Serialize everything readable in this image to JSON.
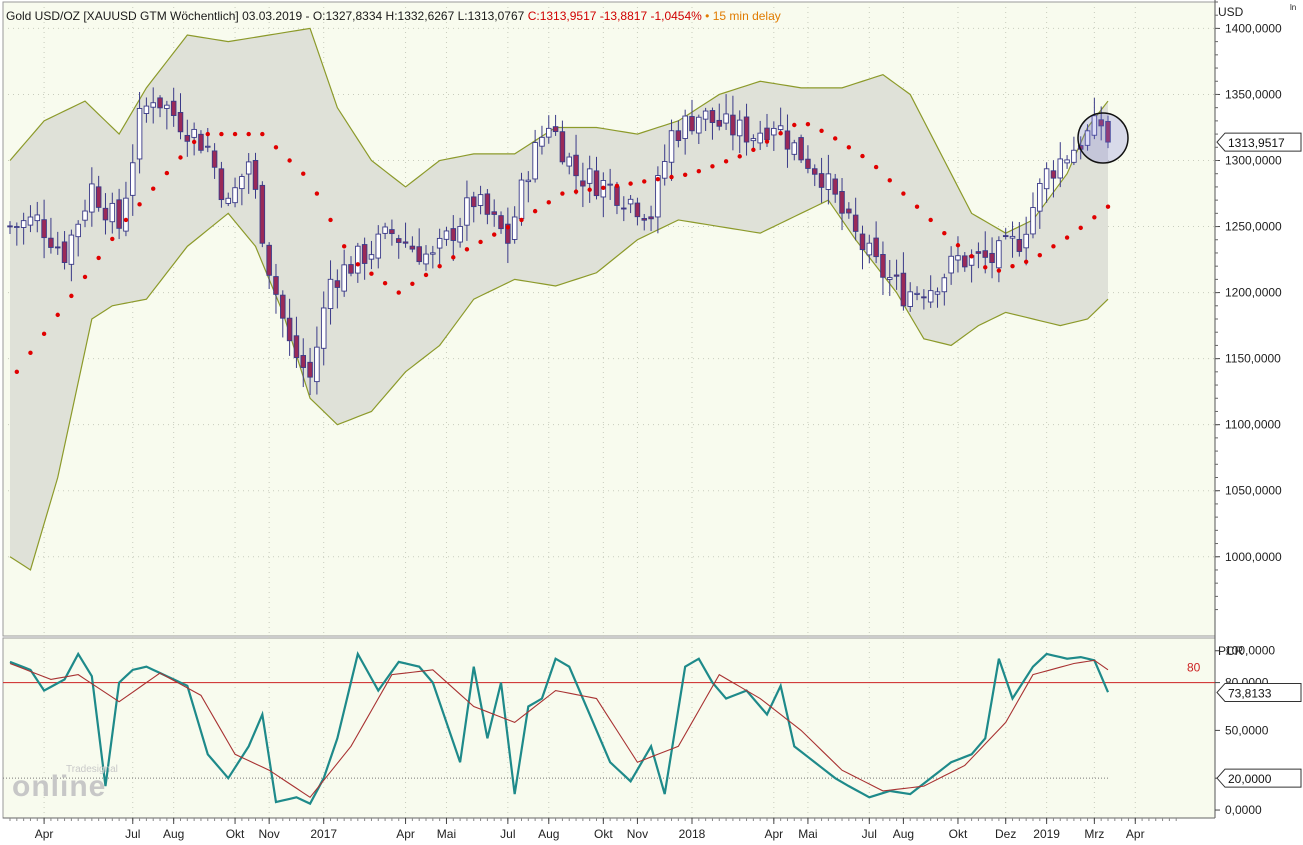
{
  "header": {
    "instrument": "Gold USD/OZ [XAUUSD GTM Wöchentlich]",
    "date": "03.03.2019",
    "ohl": "O:1327,8334 H:1332,6267 L:1313,0767",
    "close": "C:1313,9517 -13,8817 -1,0454%",
    "delay": "15 min delay"
  },
  "watermark": {
    "brand": "Tradesignal",
    "product": "online"
  },
  "colors": {
    "plot_bg": "#f8fbee",
    "band_fill": "#dfe1d8",
    "band_line": "#8c9a2a",
    "candle": "#3a3a88",
    "sar": "#e00000",
    "pcr": "#1e8a8a",
    "pcr_signal": "#a83232",
    "level80": "#cc2222"
  },
  "chart_data": [
    {
      "type": "candlestick",
      "title": "",
      "unit": "USD",
      "corner_label": "ln",
      "ylim": [
        940,
        1420
      ],
      "yticks": [
        "1400,0000",
        "1350,0000",
        "1300,0000",
        "1250,0000",
        "1200,0000",
        "1150,0000",
        "1100,0000",
        "1050,0000",
        "1000,0000"
      ],
      "ytick_values": [
        1400,
        1350,
        1300,
        1250,
        1200,
        1150,
        1100,
        1050,
        1000
      ],
      "last_value_label": "1313,9517",
      "last_value": 1313.95,
      "x_labels": [
        "Apr",
        "Jul",
        "Aug",
        "Okt",
        "Nov",
        "2017",
        "Apr",
        "Mai",
        "Jul",
        "Aug",
        "Okt",
        "Nov",
        "2018",
        "Apr",
        "Mai",
        "Jul",
        "Aug",
        "Okt",
        "Dez",
        "2019",
        "Mrz",
        "Apr"
      ],
      "x_label_weeks": [
        5,
        18,
        24,
        33,
        38,
        46,
        58,
        64,
        73,
        79,
        87,
        92,
        100,
        112,
        117,
        126,
        131,
        139,
        146,
        152,
        159,
        165
      ],
      "total_weeks": 172,
      "close_anchors": [
        [
          0,
          1250
        ],
        [
          4,
          1255
        ],
        [
          8,
          1230
        ],
        [
          12,
          1280
        ],
        [
          16,
          1250
        ],
        [
          19,
          1330
        ],
        [
          21,
          1350
        ],
        [
          25,
          1330
        ],
        [
          29,
          1310
        ],
        [
          32,
          1265
        ],
        [
          35,
          1300
        ],
        [
          38,
          1220
        ],
        [
          41,
          1160
        ],
        [
          44,
          1135
        ],
        [
          47,
          1210
        ],
        [
          51,
          1225
        ],
        [
          56,
          1245
        ],
        [
          62,
          1225
        ],
        [
          68,
          1270
        ],
        [
          73,
          1240
        ],
        [
          76,
          1295
        ],
        [
          79,
          1330
        ],
        [
          83,
          1290
        ],
        [
          88,
          1280
        ],
        [
          94,
          1260
        ],
        [
          97,
          1320
        ],
        [
          101,
          1335
        ],
        [
          105,
          1325
        ],
        [
          109,
          1320
        ],
        [
          112,
          1330
        ],
        [
          115,
          1310
        ],
        [
          119,
          1290
        ],
        [
          123,
          1250
        ],
        [
          127,
          1220
        ],
        [
          131,
          1200
        ],
        [
          135,
          1205
        ],
        [
          139,
          1225
        ],
        [
          144,
          1225
        ],
        [
          148,
          1240
        ],
        [
          152,
          1290
        ],
        [
          156,
          1310
        ],
        [
          160,
          1328
        ],
        [
          161,
          1314
        ]
      ],
      "band_upper_anchors": [
        [
          0,
          1300
        ],
        [
          5,
          1330
        ],
        [
          11,
          1345
        ],
        [
          16,
          1320
        ],
        [
          20,
          1355
        ],
        [
          26,
          1395
        ],
        [
          32,
          1390
        ],
        [
          38,
          1395
        ],
        [
          44,
          1400
        ],
        [
          48,
          1340
        ],
        [
          53,
          1300
        ],
        [
          58,
          1280
        ],
        [
          63,
          1300
        ],
        [
          68,
          1305
        ],
        [
          74,
          1305
        ],
        [
          80,
          1325
        ],
        [
          86,
          1325
        ],
        [
          92,
          1320
        ],
        [
          98,
          1330
        ],
        [
          104,
          1350
        ],
        [
          110,
          1360
        ],
        [
          116,
          1355
        ],
        [
          122,
          1355
        ],
        [
          128,
          1365
        ],
        [
          132,
          1350
        ],
        [
          136,
          1310
        ],
        [
          141,
          1260
        ],
        [
          146,
          1245
        ],
        [
          150,
          1255
        ],
        [
          155,
          1290
        ],
        [
          158,
          1325
        ],
        [
          161,
          1345
        ]
      ],
      "band_lower_anchors": [
        [
          0,
          1000
        ],
        [
          3,
          990
        ],
        [
          7,
          1060
        ],
        [
          12,
          1180
        ],
        [
          15,
          1190
        ],
        [
          20,
          1195
        ],
        [
          26,
          1235
        ],
        [
          32,
          1260
        ],
        [
          36,
          1235
        ],
        [
          40,
          1185
        ],
        [
          44,
          1120
        ],
        [
          48,
          1100
        ],
        [
          53,
          1110
        ],
        [
          58,
          1140
        ],
        [
          63,
          1160
        ],
        [
          68,
          1195
        ],
        [
          74,
          1210
        ],
        [
          80,
          1205
        ],
        [
          86,
          1215
        ],
        [
          92,
          1240
        ],
        [
          98,
          1255
        ],
        [
          104,
          1250
        ],
        [
          110,
          1245
        ],
        [
          116,
          1260
        ],
        [
          120,
          1270
        ],
        [
          124,
          1240
        ],
        [
          130,
          1200
        ],
        [
          134,
          1165
        ],
        [
          138,
          1160
        ],
        [
          142,
          1175
        ],
        [
          146,
          1185
        ],
        [
          150,
          1180
        ],
        [
          154,
          1175
        ],
        [
          158,
          1180
        ],
        [
          161,
          1195
        ]
      ],
      "sar_anchors": [
        [
          1,
          1140
        ],
        [
          17,
          1255
        ],
        [
          28,
          1320
        ],
        [
          37,
          1320
        ],
        [
          44,
          1285
        ],
        [
          50,
          1225
        ],
        [
          57,
          1200
        ],
        [
          66,
          1230
        ],
        [
          75,
          1255
        ],
        [
          81,
          1275
        ],
        [
          88,
          1280
        ],
        [
          94,
          1285
        ],
        [
          100,
          1290
        ],
        [
          108,
          1305
        ],
        [
          116,
          1330
        ],
        [
          120,
          1320
        ],
        [
          126,
          1300
        ],
        [
          132,
          1270
        ],
        [
          138,
          1240
        ],
        [
          144,
          1215
        ],
        [
          150,
          1225
        ],
        [
          156,
          1245
        ],
        [
          161,
          1265
        ]
      ],
      "annotation": "circle around latest candles"
    },
    {
      "type": "line",
      "title": "",
      "indicator": "PCR",
      "ylim": [
        -5,
        108
      ],
      "yticks": [
        "100,0000",
        "80,0000",
        "50,0000",
        "20,0000",
        "0,0000"
      ],
      "ytick_values": [
        100,
        80,
        50,
        20,
        0
      ],
      "last_value_label": "73,8133",
      "last_value": 73.81,
      "level_label": "80",
      "level": 80,
      "lower_level_label": "20,0000",
      "lower_level": 20,
      "series": [
        {
          "key": "pcr",
          "anchors": [
            [
              0,
              93
            ],
            [
              3,
              88
            ],
            [
              5,
              75
            ],
            [
              8,
              82
            ],
            [
              10,
              98
            ],
            [
              12,
              84
            ],
            [
              14,
              15
            ],
            [
              16,
              80
            ],
            [
              18,
              88
            ],
            [
              20,
              90
            ],
            [
              23,
              84
            ],
            [
              26,
              78
            ],
            [
              29,
              35
            ],
            [
              32,
              20
            ],
            [
              35,
              40
            ],
            [
              37,
              60
            ],
            [
              39,
              5
            ],
            [
              42,
              8
            ],
            [
              44,
              4
            ],
            [
              46,
              20
            ],
            [
              48,
              45
            ],
            [
              51,
              98
            ],
            [
              54,
              75
            ],
            [
              57,
              93
            ],
            [
              60,
              90
            ],
            [
              62,
              80
            ],
            [
              66,
              30
            ],
            [
              68,
              90
            ],
            [
              70,
              45
            ],
            [
              72,
              80
            ],
            [
              74,
              10
            ],
            [
              76,
              65
            ],
            [
              78,
              70
            ],
            [
              80,
              95
            ],
            [
              82,
              90
            ],
            [
              85,
              60
            ],
            [
              88,
              30
            ],
            [
              91,
              18
            ],
            [
              94,
              40
            ],
            [
              96,
              10
            ],
            [
              99,
              90
            ],
            [
              101,
              95
            ],
            [
              103,
              80
            ],
            [
              105,
              70
            ],
            [
              108,
              75
            ],
            [
              111,
              60
            ],
            [
              113,
              78
            ],
            [
              115,
              40
            ],
            [
              118,
              30
            ],
            [
              121,
              20
            ],
            [
              123,
              15
            ],
            [
              126,
              8
            ],
            [
              129,
              12
            ],
            [
              132,
              10
            ],
            [
              135,
              20
            ],
            [
              138,
              30
            ],
            [
              141,
              35
            ],
            [
              143,
              45
            ],
            [
              145,
              95
            ],
            [
              147,
              70
            ],
            [
              150,
              90
            ],
            [
              152,
              98
            ],
            [
              155,
              95
            ],
            [
              157,
              96
            ],
            [
              159,
              94
            ],
            [
              161,
              74
            ]
          ]
        },
        {
          "key": "pcr_signal",
          "anchors": [
            [
              0,
              92
            ],
            [
              6,
              82
            ],
            [
              10,
              85
            ],
            [
              16,
              68
            ],
            [
              22,
              86
            ],
            [
              28,
              72
            ],
            [
              33,
              35
            ],
            [
              38,
              25
            ],
            [
              44,
              8
            ],
            [
              50,
              40
            ],
            [
              56,
              85
            ],
            [
              62,
              88
            ],
            [
              68,
              65
            ],
            [
              74,
              55
            ],
            [
              80,
              75
            ],
            [
              86,
              70
            ],
            [
              92,
              30
            ],
            [
              98,
              40
            ],
            [
              104,
              85
            ],
            [
              110,
              70
            ],
            [
              116,
              50
            ],
            [
              122,
              25
            ],
            [
              128,
              12
            ],
            [
              134,
              15
            ],
            [
              140,
              28
            ],
            [
              146,
              55
            ],
            [
              150,
              85
            ],
            [
              156,
              92
            ],
            [
              159,
              94
            ],
            [
              161,
              88
            ]
          ]
        }
      ]
    }
  ]
}
